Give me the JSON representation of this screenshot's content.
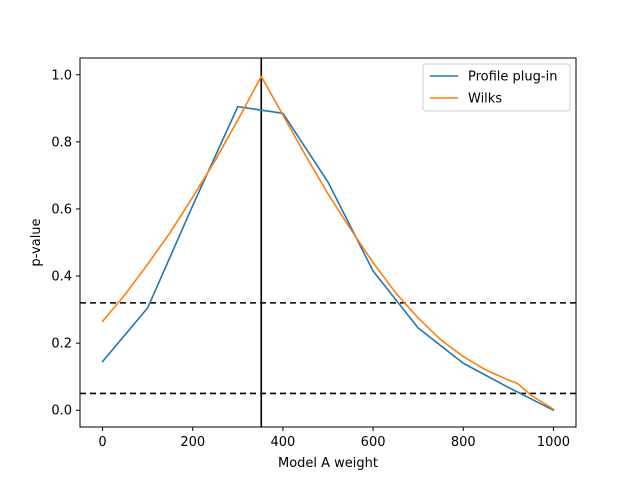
{
  "chart_data": {
    "type": "line",
    "xlabel": "Model A weight",
    "ylabel": "p-value",
    "xlim": [
      -50,
      1050
    ],
    "ylim": [
      -0.05,
      1.05
    ],
    "xticks": [
      0,
      200,
      400,
      600,
      800,
      1000
    ],
    "yticks": [
      0.0,
      0.2,
      0.4,
      0.6,
      0.8,
      1.0
    ],
    "xtick_labels": [
      "0",
      "200",
      "400",
      "600",
      "800",
      "1000"
    ],
    "ytick_labels": [
      "0.0",
      "0.2",
      "0.4",
      "0.6",
      "0.8",
      "1.0"
    ],
    "grid": false,
    "legend_position": "upper right",
    "series": [
      {
        "name": "Profile plug-in",
        "color": "#1f77b4",
        "x": [
          0,
          100,
          200,
          300,
          400,
          500,
          600,
          700,
          800,
          900,
          1000
        ],
        "y": [
          0.145,
          0.305,
          0.61,
          0.905,
          0.885,
          0.68,
          0.415,
          0.245,
          0.14,
          0.068,
          0.0
        ]
      },
      {
        "name": "Wilks",
        "color": "#ff7f0e",
        "x": [
          0,
          50,
          100,
          150,
          200,
          250,
          300,
          352,
          400,
          450,
          500,
          550,
          600,
          650,
          700,
          750,
          800,
          850,
          900,
          920,
          950,
          1000
        ],
        "y": [
          0.265,
          0.345,
          0.435,
          0.53,
          0.635,
          0.745,
          0.865,
          0.995,
          0.88,
          0.76,
          0.645,
          0.54,
          0.44,
          0.35,
          0.275,
          0.21,
          0.16,
          0.12,
          0.09,
          0.08,
          0.045,
          0.003
        ]
      }
    ],
    "hlines": [
      {
        "y": 0.32,
        "style": "dashed",
        "color": "#000000"
      },
      {
        "y": 0.05,
        "style": "dashed",
        "color": "#000000"
      }
    ],
    "vlines": [
      {
        "x": 352,
        "style": "solid",
        "color": "#000000"
      }
    ]
  }
}
